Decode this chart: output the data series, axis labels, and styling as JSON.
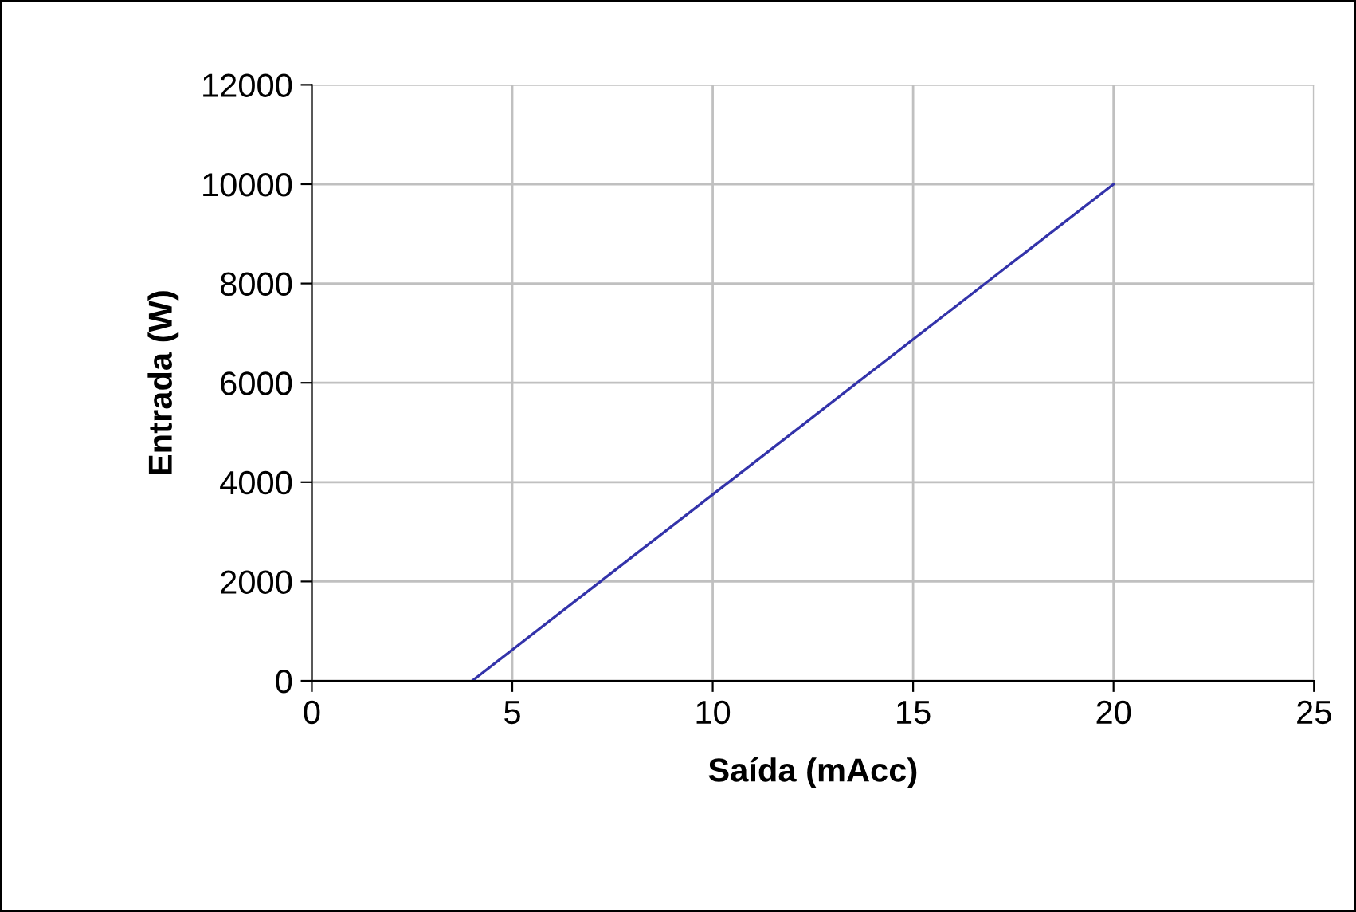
{
  "chart_data": {
    "type": "line",
    "xlabel": "Saída (mAcc)",
    "ylabel": "Entrada (W)",
    "x": [
      4,
      20
    ],
    "series": [
      {
        "color": "#3333aa",
        "values": [
          0,
          10000
        ]
      }
    ],
    "xlim": [
      0,
      25
    ],
    "xticks": [
      0,
      5,
      10,
      15,
      20,
      25
    ],
    "ylim": [
      0,
      12000
    ],
    "yticks": [
      0,
      2000,
      4000,
      6000,
      8000,
      10000,
      12000
    ],
    "grid": true,
    "marker": "none",
    "line_style": "solid"
  }
}
